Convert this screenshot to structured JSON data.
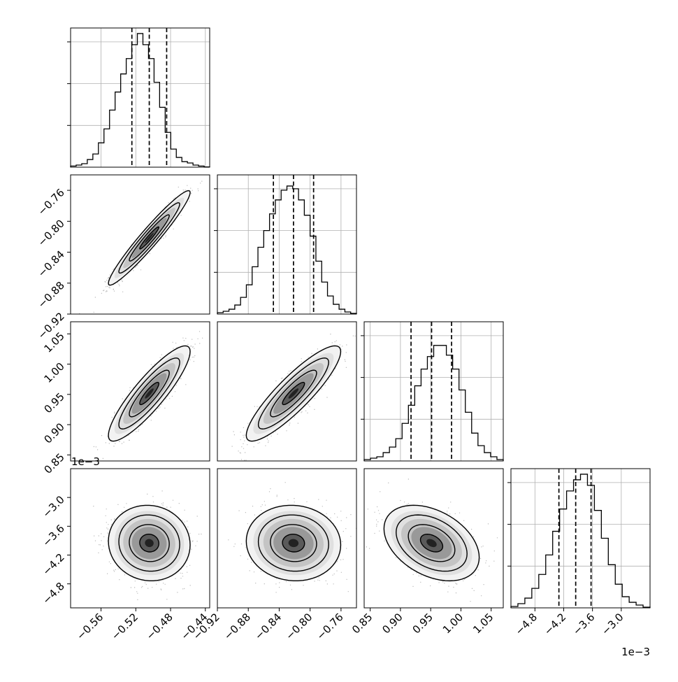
{
  "chart_data": {
    "type": "corner",
    "n_params": 4,
    "offset_label_text": "1e−3",
    "params": [
      {
        "range": [
          -0.595,
          -0.435
        ],
        "ticks": [
          -0.56,
          -0.52,
          -0.48,
          -0.44
        ],
        "tick_labels": [
          "−0.56",
          "−0.52",
          "−0.48",
          "−0.44"
        ],
        "quantiles": [
          -0.5245,
          -0.5045,
          -0.4845
        ],
        "hist": [
          0.8,
          1.5,
          2.5,
          5.5,
          9.5,
          17.5,
          27.5,
          41,
          54,
          67,
          78,
          88,
          96,
          88,
          78,
          61,
          43,
          25,
          13,
          7,
          4,
          3,
          1.5,
          0.8,
          0.2
        ],
        "hist_max": 100
      },
      {
        "range": [
          -0.92,
          -0.74
        ],
        "ticks": [
          -0.92,
          -0.88,
          -0.84,
          -0.8,
          -0.76
        ],
        "tick_labels": [
          "−0.92",
          "−0.88",
          "−0.84",
          "−0.80",
          "−0.76"
        ],
        "quantiles": [
          -0.8475,
          -0.8215,
          -0.7955
        ],
        "hist": [
          1,
          2,
          3.5,
          6.5,
          12,
          21,
          34,
          48,
          60,
          72,
          82,
          89,
          92,
          90,
          82,
          71,
          56,
          38,
          23,
          13,
          7,
          3.5,
          1.5,
          0.5
        ],
        "hist_max": 100
      },
      {
        "range": [
          0.84,
          1.07
        ],
        "ticks": [
          0.85,
          0.9,
          0.95,
          1.0,
          1.05
        ],
        "tick_labels": [
          "0.85",
          "0.90",
          "0.95",
          "1.00",
          "1.05"
        ],
        "quantiles": [
          0.9175,
          0.9515,
          0.9845
        ],
        "hist": [
          1,
          2,
          3,
          6,
          10,
          16,
          27,
          40,
          54,
          66,
          75,
          83,
          83,
          76,
          66,
          51,
          35,
          20,
          11,
          6,
          3,
          1
        ],
        "hist_max": 100
      },
      {
        "range": [
          -5.3,
          -2.4
        ],
        "ticks": [
          -4.8,
          -4.2,
          -3.6,
          -3.0
        ],
        "tick_labels": [
          "−4.8",
          "−4.2",
          "−3.6",
          "−3.0"
        ],
        "quantiles": [
          -4.3,
          -3.95,
          -3.63
        ],
        "hist": [
          1,
          3,
          7,
          14,
          24,
          38,
          55,
          71,
          84,
          92,
          96,
          88,
          70,
          50,
          31,
          17,
          8,
          4,
          2,
          0.5
        ],
        "hist_max": 100
      }
    ],
    "correlations": [
      [
        0
      ],
      [
        0.96,
        0
      ],
      [
        0.88,
        0.88,
        0
      ],
      [
        -0.05,
        -0.05,
        -0.38,
        0
      ]
    ]
  }
}
